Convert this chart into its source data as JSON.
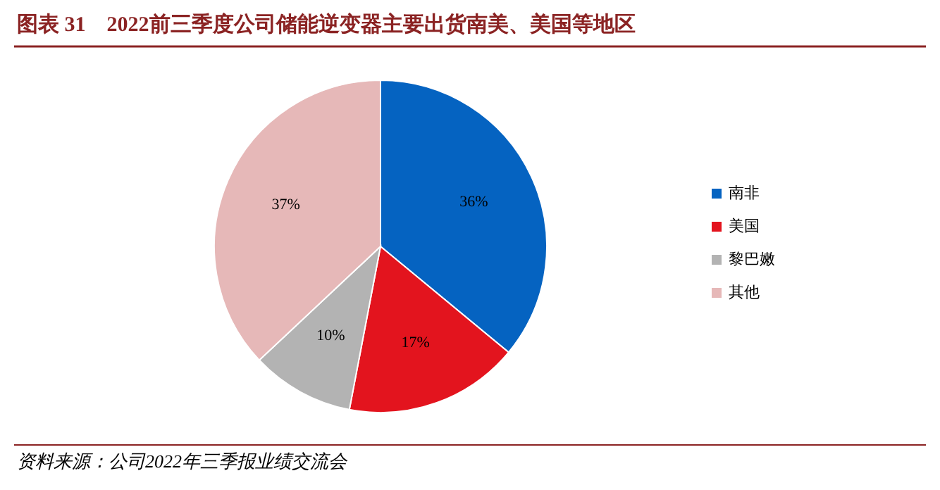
{
  "chart_data": {
    "type": "pie",
    "title": "图表 31　2022前三季度公司储能逆变器主要出货南美、美国等地区",
    "categories": [
      "南非",
      "美国",
      "黎巴嫩",
      "其他"
    ],
    "values": [
      36,
      17,
      10,
      37
    ],
    "colors": [
      "#0563c1",
      "#e3141e",
      "#b3b3b3",
      "#e6b8b8"
    ],
    "value_labels": [
      "36%",
      "17%",
      "10%",
      "37%"
    ],
    "legend": "right",
    "annotations": [
      "资料来源：公司2022年三季报业绩交流会"
    ]
  }
}
